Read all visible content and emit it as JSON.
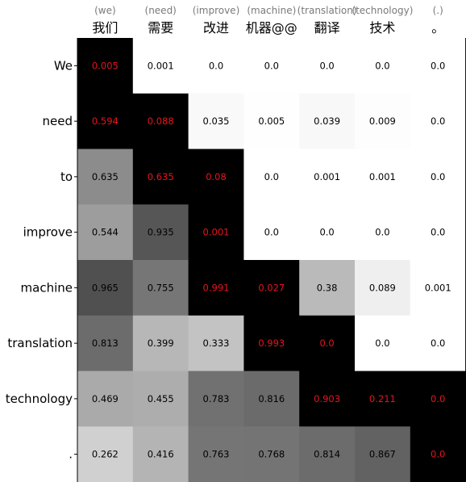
{
  "chart_data": {
    "type": "heatmap",
    "title": "",
    "xlabel": "",
    "ylabel": "",
    "columns": [
      {
        "gloss": "(we)",
        "token": "我们"
      },
      {
        "gloss": "(need)",
        "token": "需要"
      },
      {
        "gloss": "(improve)",
        "token": "改进"
      },
      {
        "gloss": "(machine)",
        "token": "机器@@"
      },
      {
        "gloss": "(translation)",
        "token": "翻译"
      },
      {
        "gloss": "(technology)",
        "token": "技术"
      },
      {
        "gloss": "(.)",
        "token": "。"
      }
    ],
    "rows": [
      "We",
      "need",
      "to",
      "improve",
      "machine",
      "translation",
      "technology",
      "."
    ],
    "cells": [
      [
        {
          "text": "0.005",
          "highlight": true
        },
        {
          "text": "0.001",
          "highlight": false
        },
        {
          "text": "0.0",
          "highlight": false
        },
        {
          "text": "0.0",
          "highlight": false
        },
        {
          "text": "0.0",
          "highlight": false
        },
        {
          "text": "0.0",
          "highlight": false
        },
        {
          "text": "0.0",
          "highlight": false
        }
      ],
      [
        {
          "text": "0.594",
          "highlight": true
        },
        {
          "text": "0.088",
          "highlight": true
        },
        {
          "text": "0.035",
          "highlight": false
        },
        {
          "text": "0.005",
          "highlight": false
        },
        {
          "text": "0.039",
          "highlight": false
        },
        {
          "text": "0.009",
          "highlight": false
        },
        {
          "text": "0.0",
          "highlight": false
        }
      ],
      [
        {
          "text": "0.635",
          "highlight": false
        },
        {
          "text": "0.635",
          "highlight": true
        },
        {
          "text": "0.08",
          "highlight": true
        },
        {
          "text": "0.0",
          "highlight": false
        },
        {
          "text": "0.001",
          "highlight": false
        },
        {
          "text": "0.001",
          "highlight": false
        },
        {
          "text": "0.0",
          "highlight": false
        }
      ],
      [
        {
          "text": "0.544",
          "highlight": false
        },
        {
          "text": "0.935",
          "highlight": false
        },
        {
          "text": "0.001",
          "highlight": true
        },
        {
          "text": "0.0",
          "highlight": false
        },
        {
          "text": "0.0",
          "highlight": false
        },
        {
          "text": "0.0",
          "highlight": false
        },
        {
          "text": "0.0",
          "highlight": false
        }
      ],
      [
        {
          "text": "0.965",
          "highlight": false
        },
        {
          "text": "0.755",
          "highlight": false
        },
        {
          "text": "0.991",
          "highlight": true
        },
        {
          "text": "0.027",
          "highlight": true
        },
        {
          "text": "0.38",
          "highlight": false
        },
        {
          "text": "0.089",
          "highlight": false
        },
        {
          "text": "0.001",
          "highlight": false
        }
      ],
      [
        {
          "text": "0.813",
          "highlight": false
        },
        {
          "text": "0.399",
          "highlight": false
        },
        {
          "text": "0.333",
          "highlight": false
        },
        {
          "text": "0.993",
          "highlight": true
        },
        {
          "text": "0.0",
          "highlight": true
        },
        {
          "text": "0.0",
          "highlight": false
        },
        {
          "text": "0.0",
          "highlight": false
        }
      ],
      [
        {
          "text": "0.469",
          "highlight": false
        },
        {
          "text": "0.455",
          "highlight": false
        },
        {
          "text": "0.783",
          "highlight": false
        },
        {
          "text": "0.816",
          "highlight": false
        },
        {
          "text": "0.903",
          "highlight": true
        },
        {
          "text": "0.211",
          "highlight": true
        },
        {
          "text": "0.0",
          "highlight": true
        }
      ],
      [
        {
          "text": "0.262",
          "highlight": false
        },
        {
          "text": "0.416",
          "highlight": false
        },
        {
          "text": "0.763",
          "highlight": false
        },
        {
          "text": "0.768",
          "highlight": false
        },
        {
          "text": "0.814",
          "highlight": false
        },
        {
          "text": "0.867",
          "highlight": false
        },
        {
          "text": "0.0",
          "highlight": true
        }
      ]
    ],
    "colors": {
      "base": "#ffffff",
      "dark": "#4a4a4a",
      "highlight_tint": "#ff6b7a",
      "highlight_text": "#e8141e",
      "normal_text": "#000000"
    }
  }
}
